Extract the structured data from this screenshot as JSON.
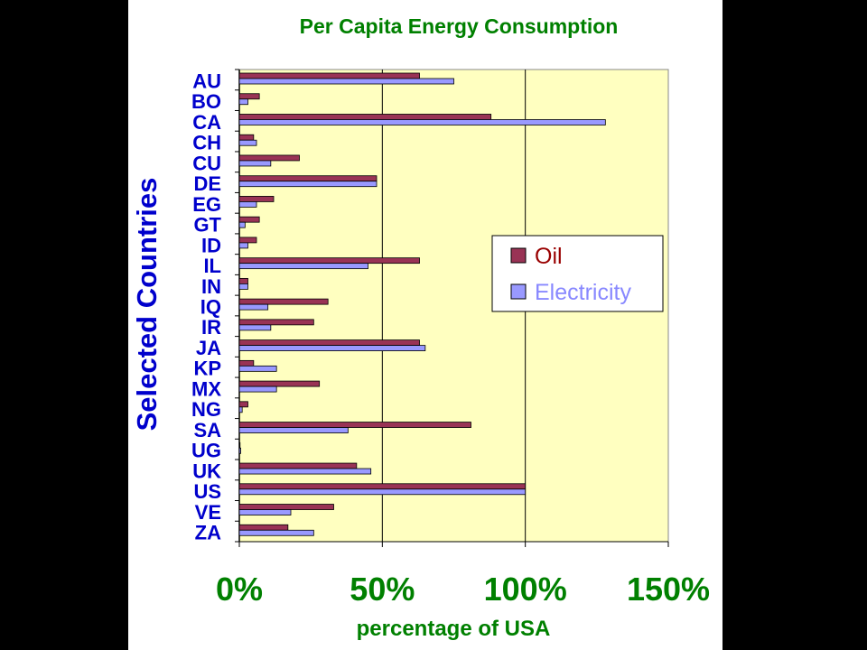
{
  "chart_data": {
    "type": "bar",
    "orientation": "horizontal",
    "title": "Per Capita Energy Consumption",
    "xlabel": "percentage of USA",
    "ylabel": "Selected Countries",
    "categories": [
      "AU",
      "BO",
      "CA",
      "CH",
      "CU",
      "DE",
      "EG",
      "GT",
      "ID",
      "IL",
      "IN",
      "IQ",
      "IR",
      "JA",
      "KP",
      "MX",
      "NG",
      "SA",
      "UG",
      "UK",
      "US",
      "VE",
      "ZA"
    ],
    "series": [
      {
        "name": "Oil",
        "color": "#993355",
        "values": [
          63,
          7,
          88,
          5,
          21,
          48,
          12,
          7,
          6,
          63,
          3,
          31,
          26,
          63,
          5,
          28,
          3,
          81,
          0,
          41,
          100,
          33,
          17
        ]
      },
      {
        "name": "Electricity",
        "color": "#9999ff",
        "values": [
          75,
          3,
          128,
          6,
          11,
          48,
          6,
          2,
          3,
          45,
          3,
          10,
          11,
          65,
          13,
          13,
          1,
          38,
          0.5,
          46,
          100,
          18,
          26
        ]
      }
    ],
    "xlim": [
      0,
      150
    ],
    "xticks": [
      "0%",
      "50%",
      "100%",
      "150%"
    ],
    "grid": true,
    "legend_position": "right",
    "plot_background": "#ffffc0",
    "title_color": "#008000",
    "axis_label_color": "#0000cc"
  }
}
